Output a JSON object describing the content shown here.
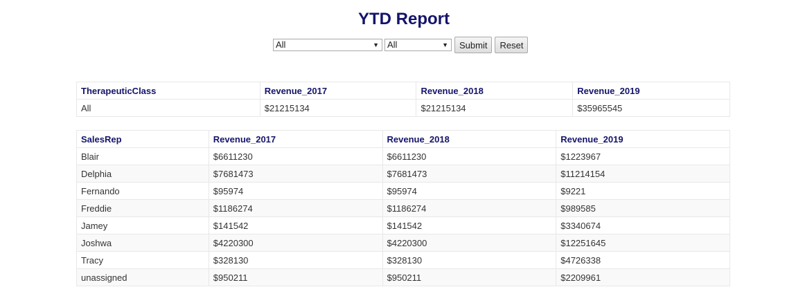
{
  "header": {
    "title": "YTD Report"
  },
  "filters": {
    "class_select": "All",
    "rep_select": "All",
    "submit_label": "Submit",
    "reset_label": "Reset"
  },
  "class_table": {
    "headers": [
      "TherapeuticClass",
      "Revenue_2017",
      "Revenue_2018",
      "Revenue_2019"
    ],
    "rows": [
      [
        "All",
        "$21215134",
        "$21215134",
        "$35965545"
      ]
    ]
  },
  "rep_table": {
    "headers": [
      "SalesRep",
      "Revenue_2017",
      "Revenue_2018",
      "Revenue_2019"
    ],
    "rows": [
      [
        "Blair",
        "$6611230",
        "$6611230",
        "$1223967"
      ],
      [
        "Delphia",
        "$7681473",
        "$7681473",
        "$11214154"
      ],
      [
        "Fernando",
        "$95974",
        "$95974",
        "$9221"
      ],
      [
        "Freddie",
        "$1186274",
        "$1186274",
        "$989585"
      ],
      [
        "Jamey",
        "$141542",
        "$141542",
        "$3340674"
      ],
      [
        "Joshwa",
        "$4220300",
        "$4220300",
        "$12251645"
      ],
      [
        "Tracy",
        "$328130",
        "$328130",
        "$4726338"
      ],
      [
        "unassigned",
        "$950211",
        "$950211",
        "$2209961"
      ]
    ]
  }
}
